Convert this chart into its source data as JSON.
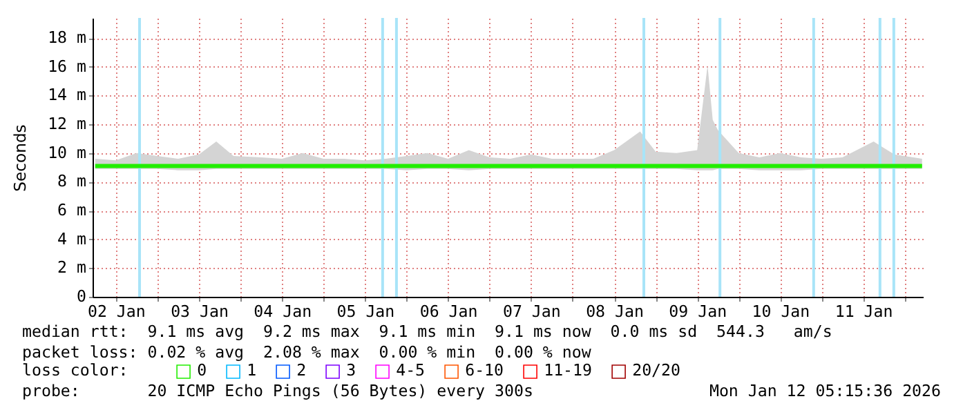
{
  "chart_data": {
    "type": "line",
    "ylabel": "Seconds",
    "legend_title": "loss color:",
    "x": [
      "2026-01-02T06:00",
      "2026-01-02T12:00",
      "2026-01-02T18:00",
      "2026-01-03T00:00",
      "2026-01-03T06:00",
      "2026-01-03T12:00",
      "2026-01-03T17:00",
      "2026-01-03T22:00",
      "2026-01-04T06:00",
      "2026-01-04T12:00",
      "2026-01-04T18:00",
      "2026-01-05T00:00",
      "2026-01-05T06:00",
      "2026-01-05T12:00",
      "2026-01-05T18:00",
      "2026-01-06T00:00",
      "2026-01-06T06:00",
      "2026-01-06T12:00",
      "2026-01-06T18:00",
      "2026-01-07T00:00",
      "2026-01-07T06:00",
      "2026-01-07T12:00",
      "2026-01-07T18:00",
      "2026-01-08T00:00",
      "2026-01-08T06:00",
      "2026-01-08T12:00",
      "2026-01-08T19:30",
      "2026-01-09T00:00",
      "2026-01-09T06:00",
      "2026-01-09T12:00",
      "2026-01-09T15:00",
      "2026-01-09T16:30",
      "2026-01-09T18:00",
      "2026-01-10T00:00",
      "2026-01-10T06:00",
      "2026-01-10T12:00",
      "2026-01-10T18:00",
      "2026-01-11T00:00",
      "2026-01-11T06:00",
      "2026-01-11T15:00",
      "2026-01-11T21:00",
      "2026-01-12T05:00"
    ],
    "series": [
      {
        "name": "0",
        "color": "#22ee00",
        "values": [
          9.1,
          9.1,
          9.1,
          9.1,
          9.1,
          9.1,
          9.1,
          9.1,
          9.1,
          9.1,
          9.1,
          9.1,
          9.1,
          9.1,
          9.1,
          9.1,
          9.1,
          9.1,
          9.1,
          9.1,
          9.1,
          9.1,
          9.1,
          9.1,
          9.1,
          9.1,
          9.1,
          9.1,
          9.1,
          9.1,
          9.1,
          9.1,
          9.1,
          9.1,
          9.1,
          9.1,
          9.1,
          9.1,
          9.1,
          9.1,
          9.1,
          9.1
        ],
        "lower": [
          8.9,
          8.9,
          8.9,
          8.9,
          8.8,
          8.8,
          8.9,
          8.9,
          8.9,
          8.9,
          8.9,
          8.9,
          8.9,
          8.9,
          8.9,
          8.8,
          8.9,
          8.9,
          8.8,
          8.9,
          8.9,
          8.9,
          8.9,
          8.9,
          8.9,
          8.9,
          8.9,
          8.9,
          8.9,
          8.8,
          8.8,
          8.8,
          8.9,
          8.9,
          8.8,
          8.8,
          8.8,
          8.9,
          8.9,
          8.9,
          8.9,
          8.9
        ],
        "upper": [
          9.6,
          9.5,
          10.0,
          9.8,
          9.6,
          9.9,
          10.8,
          9.8,
          9.7,
          9.6,
          10.0,
          9.6,
          9.6,
          9.5,
          9.6,
          9.8,
          10.0,
          9.6,
          10.2,
          9.7,
          9.6,
          9.9,
          9.6,
          9.6,
          9.6,
          10.2,
          11.5,
          10.1,
          10.0,
          10.2,
          16.1,
          12.3,
          11.6,
          10.0,
          9.7,
          10.0,
          9.7,
          9.6,
          9.7,
          10.8,
          9.9,
          9.6
        ]
      },
      {
        "name": "1",
        "color": "#00b8ff",
        "values": [
          null,
          null,
          null,
          null,
          null,
          null,
          null,
          null,
          null,
          null,
          null,
          null,
          null,
          null,
          null,
          null,
          null,
          null,
          null,
          null,
          null,
          null,
          null,
          null,
          null,
          null,
          null,
          null,
          null,
          null,
          null,
          null,
          null,
          null,
          null,
          null,
          null,
          null,
          null,
          null,
          null,
          null
        ]
      },
      {
        "name": "2",
        "color": "#0059ff",
        "values": [
          null,
          null,
          null,
          null,
          null,
          null,
          null,
          null,
          null,
          null,
          null,
          null,
          null,
          null,
          null,
          null,
          null,
          null,
          null,
          null,
          null,
          null,
          null,
          null,
          null,
          null,
          null,
          null,
          null,
          null,
          null,
          null,
          null,
          null,
          null,
          null,
          null,
          null,
          null,
          null,
          null,
          null
        ]
      },
      {
        "name": "3",
        "color": "#7e00ff",
        "values": [
          null,
          null,
          null,
          null,
          null,
          null,
          null,
          null,
          null,
          null,
          null,
          null,
          null,
          null,
          null,
          null,
          null,
          null,
          null,
          null,
          null,
          null,
          null,
          null,
          null,
          null,
          null,
          null,
          null,
          null,
          null,
          null,
          null,
          null,
          null,
          null,
          null,
          null,
          null,
          null,
          null,
          null
        ]
      },
      {
        "name": "4-5",
        "color": "#ff00ff",
        "values": [
          null,
          null,
          null,
          null,
          null,
          null,
          null,
          null,
          null,
          null,
          null,
          null,
          null,
          null,
          null,
          null,
          null,
          null,
          null,
          null,
          null,
          null,
          null,
          null,
          null,
          null,
          null,
          null,
          null,
          null,
          null,
          null,
          null,
          null,
          null,
          null,
          null,
          null,
          null,
          null,
          null,
          null
        ]
      },
      {
        "name": "6-10",
        "color": "#ff5500",
        "values": [
          null,
          null,
          null,
          null,
          null,
          null,
          null,
          null,
          null,
          null,
          null,
          null,
          null,
          null,
          null,
          null,
          null,
          null,
          null,
          null,
          null,
          null,
          null,
          null,
          null,
          null,
          null,
          null,
          null,
          null,
          null,
          null,
          null,
          null,
          null,
          null,
          null,
          null,
          null,
          null,
          null,
          null
        ]
      },
      {
        "name": "11-19",
        "color": "#ff0000",
        "values": [
          null,
          null,
          null,
          null,
          null,
          null,
          null,
          null,
          null,
          null,
          null,
          null,
          null,
          null,
          null,
          null,
          null,
          null,
          null,
          null,
          null,
          null,
          null,
          null,
          null,
          null,
          null,
          null,
          null,
          null,
          null,
          null,
          null,
          null,
          null,
          null,
          null,
          null,
          null,
          null,
          null,
          null
        ]
      },
      {
        "name": "20/20",
        "color": "#a10000",
        "values": [
          null,
          null,
          null,
          null,
          null,
          null,
          null,
          null,
          null,
          null,
          null,
          null,
          null,
          null,
          null,
          null,
          null,
          null,
          null,
          null,
          null,
          null,
          null,
          null,
          null,
          null,
          null,
          null,
          null,
          null,
          null,
          null,
          null,
          null,
          null,
          null,
          null,
          null,
          null,
          null,
          null,
          null
        ]
      }
    ],
    "xlim": [
      "2026-01-02T05:15",
      "2026-01-12T05:15"
    ],
    "xticks": [
      {
        "value": "2026-01-02T12:00",
        "label": "02 Jan"
      },
      {
        "value": "2026-01-03T00:00",
        "label": null
      },
      {
        "value": "2026-01-03T12:00",
        "label": "03 Jan"
      },
      {
        "value": "2026-01-04T00:00",
        "label": null
      },
      {
        "value": "2026-01-04T12:00",
        "label": "04 Jan"
      },
      {
        "value": "2026-01-05T00:00",
        "label": null
      },
      {
        "value": "2026-01-05T12:00",
        "label": "05 Jan"
      },
      {
        "value": "2026-01-06T00:00",
        "label": null
      },
      {
        "value": "2026-01-06T12:00",
        "label": "06 Jan"
      },
      {
        "value": "2026-01-07T00:00",
        "label": null
      },
      {
        "value": "2026-01-07T12:00",
        "label": "07 Jan"
      },
      {
        "value": "2026-01-08T00:00",
        "label": null
      },
      {
        "value": "2026-01-08T12:00",
        "label": "08 Jan"
      },
      {
        "value": "2026-01-09T00:00",
        "label": null
      },
      {
        "value": "2026-01-09T12:00",
        "label": "09 Jan"
      },
      {
        "value": "2026-01-10T00:00",
        "label": null
      },
      {
        "value": "2026-01-10T12:00",
        "label": "10 Jan"
      },
      {
        "value": "2026-01-11T00:00",
        "label": null
      },
      {
        "value": "2026-01-11T12:00",
        "label": "11 Jan"
      },
      {
        "value": "2026-01-12T00:00",
        "label": null
      }
    ],
    "ylim": [
      0,
      19.4
    ],
    "yticks": [
      0,
      {
        "value": 2,
        "label": "2 m"
      },
      {
        "value": 4,
        "label": "4 m"
      },
      {
        "value": 6,
        "label": "6 m"
      },
      {
        "value": 8,
        "label": "8 m"
      },
      {
        "value": 10,
        "label": "10 m"
      },
      {
        "value": 12,
        "label": "12 m"
      },
      {
        "value": 14,
        "label": "14 m"
      },
      {
        "value": 16,
        "label": "16 m"
      },
      {
        "value": 18,
        "label": "18 m"
      }
    ],
    "ref_lines": [
      {
        "axis": "x",
        "value": "2026-01-02T18:50",
        "color": "#a8e4f8"
      },
      {
        "axis": "x",
        "value": "2026-01-05T17:05",
        "color": "#a8e4f8"
      },
      {
        "axis": "x",
        "value": "2026-01-05T21:05",
        "color": "#a8e4f8"
      },
      {
        "axis": "x",
        "value": "2026-01-08T20:35",
        "color": "#a8e4f8"
      },
      {
        "axis": "x",
        "value": "2026-01-09T18:35",
        "color": "#a8e4f8"
      },
      {
        "axis": "x",
        "value": "2026-01-10T21:40",
        "color": "#a8e4f8"
      },
      {
        "axis": "x",
        "value": "2026-01-11T16:50",
        "color": "#a8e4f8"
      },
      {
        "axis": "x",
        "value": "2026-01-11T20:50",
        "color": "#a8e4f8"
      }
    ],
    "grid": true,
    "legend": "bottom left",
    "marker": "none",
    "line_style": "solid",
    "annotations": [
      "median rtt:  9.1 ms avg  9.2 ms max  9.1 ms min  9.1 ms now  0.0 ms sd  544.3   am/s",
      "packet loss: 0.02 % avg  2.08 % max  0.00 % min  0.00 % now",
      "probe:       20 ICMP Echo Pings (56 Bytes) every 300s",
      "Mon Jan 12 05:15:36 2026"
    ]
  }
}
